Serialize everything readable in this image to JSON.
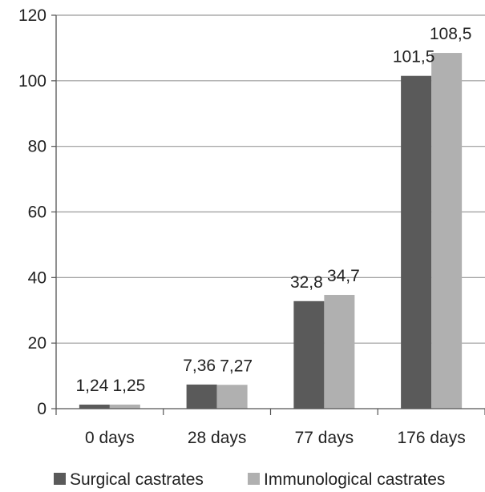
{
  "chart_data": {
    "type": "bar",
    "title": "",
    "xlabel": "",
    "ylabel": "",
    "categories": [
      "0 days",
      "28 days",
      "77 days",
      "176 days"
    ],
    "series": [
      {
        "name": "Surgical castrates",
        "color": "#5a5a5a",
        "values": [
          1.24,
          7.36,
          32.8,
          101.5
        ],
        "labels": [
          "1,24",
          "7,36",
          "32,8",
          "101,5"
        ]
      },
      {
        "name": "Immunological castrates",
        "color": "#b0b0b0",
        "values": [
          1.25,
          7.27,
          34.7,
          108.5
        ],
        "labels": [
          "1,25",
          "7,27",
          "34,7",
          "108,5"
        ]
      }
    ],
    "ylim": [
      0,
      120
    ],
    "yticks": [
      0,
      20,
      40,
      60,
      80,
      100,
      120
    ],
    "grid": true,
    "legend": "bottom"
  }
}
